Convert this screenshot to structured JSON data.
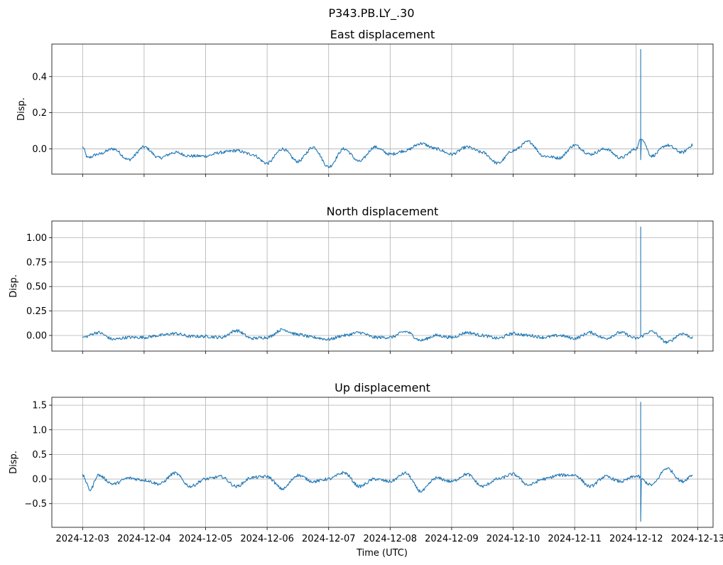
{
  "figure": {
    "suptitle": "P343.PB.LY_.30",
    "xlabel": "Time (UTC)"
  },
  "chart_data": [
    {
      "type": "line",
      "title": "East displacement",
      "ylabel": "Disp.",
      "xlim": [
        "2024-12-02T12:00",
        "2024-12-13T06:00"
      ],
      "ylim": [
        -0.14,
        0.58
      ],
      "yticks": [
        0.0,
        0.2,
        0.4
      ],
      "ytick_labels": [
        "0.0",
        "0.2",
        "0.4"
      ],
      "grid": true,
      "line_color": "#1f77b4",
      "series_keypoints": {
        "x": [
          "2024-12-03T00:00",
          "2024-12-03T02:00",
          "2024-12-03T06:00",
          "2024-12-03T12:00",
          "2024-12-03T18:00",
          "2024-12-04T00:00",
          "2024-12-04T06:00",
          "2024-12-04T12:00",
          "2024-12-04T18:00",
          "2024-12-05T00:00",
          "2024-12-05T06:00",
          "2024-12-05T12:00",
          "2024-12-05T18:00",
          "2024-12-06T00:00",
          "2024-12-06T06:00",
          "2024-12-06T12:00",
          "2024-12-06T18:00",
          "2024-12-07T00:00",
          "2024-12-07T06:00",
          "2024-12-07T12:00",
          "2024-12-07T18:00",
          "2024-12-08T00:00",
          "2024-12-08T06:00",
          "2024-12-08T12:00",
          "2024-12-08T18:00",
          "2024-12-09T00:00",
          "2024-12-09T06:00",
          "2024-12-09T12:00",
          "2024-12-09T18:00",
          "2024-12-10T00:00",
          "2024-12-10T06:00",
          "2024-12-10T12:00",
          "2024-12-10T18:00",
          "2024-12-11T00:00",
          "2024-12-11T06:00",
          "2024-12-11T12:00",
          "2024-12-11T18:00",
          "2024-12-12T00:00",
          "2024-12-12T02:00",
          "2024-12-12T06:00",
          "2024-12-12T12:00",
          "2024-12-12T18:00",
          "2024-12-12T22:00"
        ],
        "y": [
          0.01,
          -0.05,
          -0.03,
          0.0,
          -0.06,
          0.01,
          -0.05,
          -0.02,
          -0.04,
          -0.04,
          -0.02,
          -0.01,
          -0.03,
          -0.08,
          0.0,
          -0.07,
          0.01,
          -0.1,
          0.0,
          -0.07,
          0.01,
          -0.03,
          -0.01,
          0.03,
          0.0,
          -0.03,
          0.01,
          -0.02,
          -0.08,
          -0.01,
          0.04,
          -0.04,
          -0.05,
          0.02,
          -0.03,
          0.0,
          -0.05,
          0.0,
          0.06,
          -0.04,
          0.02,
          -0.02,
          0.02
        ]
      },
      "spike": {
        "x": "2024-12-12T01:40",
        "max": 0.55,
        "min": -0.06
      }
    },
    {
      "type": "line",
      "title": "North displacement",
      "ylabel": "Disp.",
      "xlim": [
        "2024-12-02T12:00",
        "2024-12-13T06:00"
      ],
      "ylim": [
        -0.16,
        1.17
      ],
      "yticks": [
        0.0,
        0.25,
        0.5,
        0.75,
        1.0
      ],
      "ytick_labels": [
        "0.00",
        "0.25",
        "0.50",
        "0.75",
        "1.00"
      ],
      "grid": true,
      "line_color": "#1f77b4",
      "series_keypoints": {
        "x": [
          "2024-12-03T00:00",
          "2024-12-03T06:00",
          "2024-12-03T12:00",
          "2024-12-03T18:00",
          "2024-12-04T00:00",
          "2024-12-04T06:00",
          "2024-12-04T12:00",
          "2024-12-04T18:00",
          "2024-12-05T00:00",
          "2024-12-05T06:00",
          "2024-12-05T12:00",
          "2024-12-05T18:00",
          "2024-12-06T00:00",
          "2024-12-06T06:00",
          "2024-12-06T12:00",
          "2024-12-06T18:00",
          "2024-12-07T00:00",
          "2024-12-07T06:00",
          "2024-12-07T12:00",
          "2024-12-07T18:00",
          "2024-12-08T00:00",
          "2024-12-08T06:00",
          "2024-12-08T12:00",
          "2024-12-08T18:00",
          "2024-12-09T00:00",
          "2024-12-09T06:00",
          "2024-12-09T12:00",
          "2024-12-09T18:00",
          "2024-12-10T00:00",
          "2024-12-10T06:00",
          "2024-12-10T12:00",
          "2024-12-10T18:00",
          "2024-12-11T00:00",
          "2024-12-11T06:00",
          "2024-12-11T12:00",
          "2024-12-11T18:00",
          "2024-12-12T00:00",
          "2024-12-12T06:00",
          "2024-12-12T12:00",
          "2024-12-12T18:00",
          "2024-12-12T22:00"
        ],
        "y": [
          -0.02,
          0.03,
          -0.04,
          -0.02,
          -0.02,
          0.0,
          0.02,
          -0.01,
          -0.01,
          -0.02,
          0.05,
          -0.03,
          -0.02,
          0.06,
          0.01,
          -0.02,
          -0.04,
          0.0,
          0.03,
          -0.02,
          -0.02,
          0.04,
          -0.05,
          0.0,
          -0.02,
          0.03,
          0.0,
          -0.03,
          0.02,
          0.0,
          -0.02,
          0.0,
          -0.03,
          0.03,
          -0.03,
          0.03,
          -0.03,
          0.04,
          -0.07,
          0.02,
          -0.02
        ]
      },
      "spike": {
        "x": "2024-12-12T01:40",
        "max": 1.11,
        "min": 0.0
      }
    },
    {
      "type": "line",
      "title": "Up displacement",
      "ylabel": "Disp.",
      "xlim": [
        "2024-12-02T12:00",
        "2024-12-13T06:00"
      ],
      "ylim": [
        -0.98,
        1.66
      ],
      "yticks": [
        -0.5,
        0.0,
        0.5,
        1.0,
        1.5
      ],
      "ytick_labels": [
        "−0.5",
        "0.0",
        "0.5",
        "1.0",
        "1.5"
      ],
      "xticks": [
        "2024-12-03",
        "2024-12-04",
        "2024-12-05",
        "2024-12-06",
        "2024-12-07",
        "2024-12-08",
        "2024-12-09",
        "2024-12-10",
        "2024-12-11",
        "2024-12-12",
        "2024-12-13"
      ],
      "grid": true,
      "line_color": "#1f77b4",
      "series_keypoints": {
        "x": [
          "2024-12-03T00:00",
          "2024-12-03T03:00",
          "2024-12-03T06:00",
          "2024-12-03T12:00",
          "2024-12-03T18:00",
          "2024-12-04T00:00",
          "2024-12-04T06:00",
          "2024-12-04T12:00",
          "2024-12-04T18:00",
          "2024-12-05T00:00",
          "2024-12-05T06:00",
          "2024-12-05T12:00",
          "2024-12-05T18:00",
          "2024-12-06T00:00",
          "2024-12-06T06:00",
          "2024-12-06T12:00",
          "2024-12-06T18:00",
          "2024-12-07T00:00",
          "2024-12-07T06:00",
          "2024-12-07T12:00",
          "2024-12-07T18:00",
          "2024-12-08T00:00",
          "2024-12-08T06:00",
          "2024-12-08T12:00",
          "2024-12-08T18:00",
          "2024-12-09T00:00",
          "2024-12-09T06:00",
          "2024-12-09T12:00",
          "2024-12-09T18:00",
          "2024-12-10T00:00",
          "2024-12-10T06:00",
          "2024-12-10T12:00",
          "2024-12-10T18:00",
          "2024-12-11T00:00",
          "2024-12-11T06:00",
          "2024-12-11T12:00",
          "2024-12-11T18:00",
          "2024-12-12T00:00",
          "2024-12-12T06:00",
          "2024-12-12T12:00",
          "2024-12-12T18:00",
          "2024-12-12T22:00"
        ],
        "y": [
          0.07,
          -0.22,
          0.08,
          -0.1,
          0.02,
          -0.02,
          -0.1,
          0.12,
          -0.15,
          0.0,
          0.05,
          -0.15,
          0.03,
          0.05,
          -0.2,
          0.08,
          -0.05,
          0.0,
          0.13,
          -0.15,
          0.0,
          -0.05,
          0.12,
          -0.25,
          0.02,
          -0.05,
          0.1,
          -0.15,
          0.0,
          0.1,
          -0.12,
          0.0,
          0.08,
          0.08,
          -0.15,
          0.05,
          -0.05,
          0.06,
          -0.12,
          0.22,
          -0.05,
          0.08
        ]
      },
      "spike": {
        "x": "2024-12-12T01:40",
        "max": 1.56,
        "min": -0.86
      }
    }
  ]
}
